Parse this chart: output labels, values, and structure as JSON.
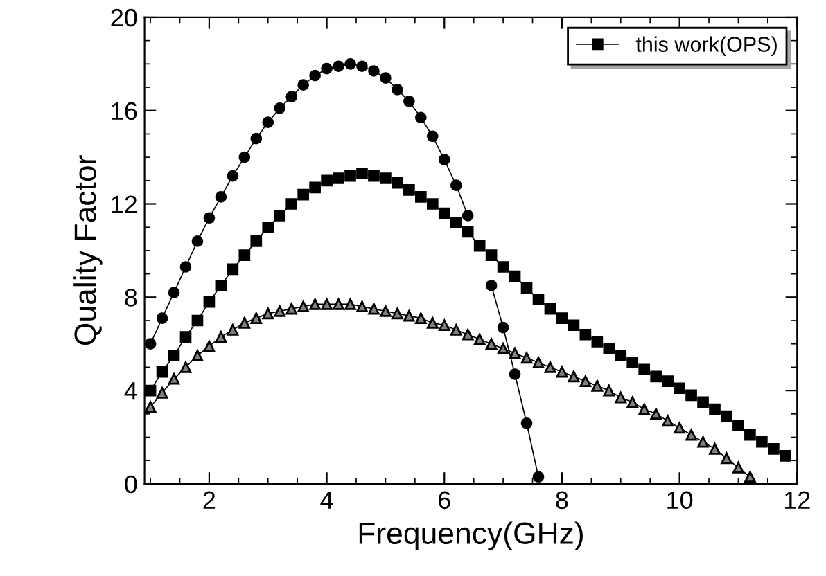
{
  "chart_data": {
    "type": "line",
    "xlabel": "Frequency(GHz)",
    "ylabel": "Quality Factor",
    "xlim": [
      0.9,
      12
    ],
    "ylim": [
      0,
      20
    ],
    "xticks": [
      2,
      4,
      6,
      8,
      10,
      12
    ],
    "yticks": [
      0,
      4,
      8,
      12,
      16,
      20
    ],
    "grid": false,
    "legend": "top right",
    "line_style": "solid",
    "series": [
      {
        "name": "this work(OPS)",
        "color": "#000000",
        "marker": "square",
        "x": [
          1.0,
          1.2,
          1.4,
          1.6,
          1.8,
          2.0,
          2.2,
          2.4,
          2.6,
          2.8,
          3.0,
          3.2,
          3.4,
          3.6,
          3.8,
          4.0,
          4.2,
          4.4,
          4.6,
          4.8,
          5.0,
          5.2,
          5.4,
          5.6,
          5.8,
          6.0,
          6.2,
          6.4,
          6.6,
          6.8,
          7.0,
          7.2,
          7.4,
          7.6,
          7.8,
          8.0,
          8.2,
          8.4,
          8.6,
          8.8,
          9.0,
          9.2,
          9.4,
          9.6,
          9.8,
          10.0,
          10.2,
          10.4,
          10.6,
          10.8,
          11.0,
          11.2,
          11.4,
          11.6,
          11.8
        ],
        "values": [
          4.0,
          4.8,
          5.5,
          6.3,
          7.0,
          7.8,
          8.5,
          9.2,
          9.8,
          10.4,
          11.0,
          11.5,
          12.0,
          12.4,
          12.7,
          13.0,
          13.1,
          13.2,
          13.3,
          13.2,
          13.1,
          12.9,
          12.6,
          12.3,
          12.0,
          11.6,
          11.2,
          10.8,
          10.2,
          9.8,
          9.3,
          8.9,
          8.4,
          7.9,
          7.5,
          7.1,
          6.8,
          6.4,
          6.1,
          5.8,
          5.5,
          5.2,
          4.9,
          4.6,
          4.4,
          4.1,
          3.8,
          3.5,
          3.2,
          2.9,
          2.5,
          2.1,
          1.8,
          1.5,
          1.2
        ]
      },
      {
        "color": "#000000",
        "marker": "circle",
        "x": [
          1.0,
          1.2,
          1.4,
          1.6,
          1.8,
          2.0,
          2.2,
          2.4,
          2.6,
          2.8,
          3.0,
          3.2,
          3.4,
          3.6,
          3.8,
          4.0,
          4.2,
          4.4,
          4.6,
          4.8,
          5.0,
          5.2,
          5.4,
          5.6,
          5.8,
          6.0,
          6.2,
          6.4,
          6.6,
          6.8,
          7.0,
          7.2,
          7.4,
          7.6
        ],
        "values": [
          6.0,
          7.1,
          8.2,
          9.3,
          10.4,
          11.4,
          12.3,
          13.2,
          14.0,
          14.8,
          15.5,
          16.1,
          16.6,
          17.1,
          17.5,
          17.8,
          17.9,
          18.0,
          17.9,
          17.7,
          17.4,
          16.9,
          16.4,
          15.7,
          14.9,
          13.9,
          12.8,
          11.5,
          null,
          8.5,
          6.7,
          4.7,
          2.6,
          0.3
        ]
      },
      {
        "color": "#808080",
        "marker": "triangle",
        "x": [
          1.0,
          1.2,
          1.4,
          1.6,
          1.8,
          2.0,
          2.2,
          2.4,
          2.6,
          2.8,
          3.0,
          3.2,
          3.4,
          3.6,
          3.8,
          4.0,
          4.2,
          4.4,
          4.6,
          4.8,
          5.0,
          5.2,
          5.4,
          5.6,
          5.8,
          6.0,
          6.2,
          6.4,
          6.6,
          6.8,
          7.0,
          7.2,
          7.4,
          7.6,
          7.8,
          8.0,
          8.2,
          8.4,
          8.6,
          8.8,
          9.0,
          9.2,
          9.4,
          9.6,
          9.8,
          10.0,
          10.2,
          10.4,
          10.6,
          10.8,
          11.0,
          11.2
        ],
        "values": [
          3.3,
          3.9,
          4.5,
          5.0,
          5.5,
          5.9,
          6.3,
          6.6,
          6.9,
          7.1,
          7.3,
          7.4,
          7.5,
          7.6,
          7.7,
          7.7,
          7.7,
          7.7,
          7.6,
          7.5,
          7.4,
          7.3,
          7.2,
          7.1,
          6.9,
          6.8,
          6.6,
          6.4,
          6.2,
          6.0,
          5.8,
          5.6,
          5.4,
          5.2,
          5.0,
          4.8,
          4.6,
          4.4,
          4.2,
          4.0,
          3.7,
          3.5,
          3.2,
          3.0,
          2.7,
          2.4,
          2.1,
          1.8,
          1.5,
          1.1,
          0.7,
          0.3
        ]
      }
    ]
  }
}
